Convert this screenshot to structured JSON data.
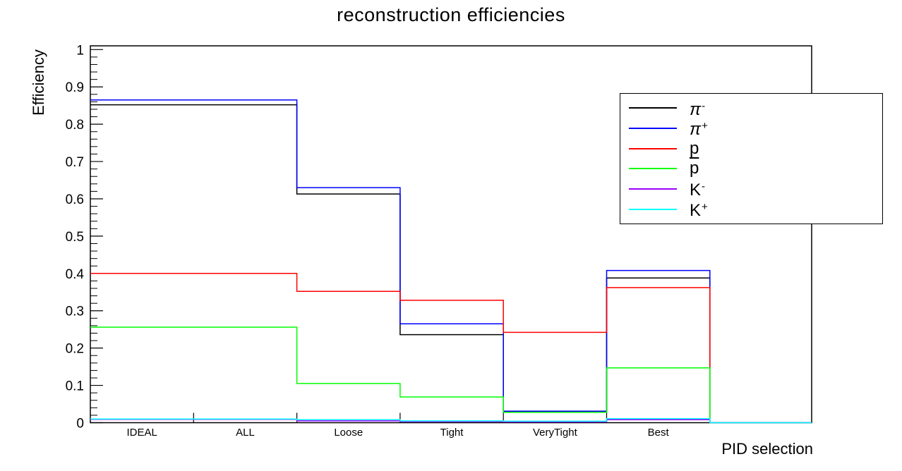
{
  "title": "reconstruction efficiencies",
  "chart_data": {
    "type": "line",
    "style": "step-histogram",
    "title": "reconstruction efficiencies",
    "xlabel": "PID selection",
    "ylabel": "Efficiency",
    "categories": [
      "IDEAL",
      "ALL",
      "Loose",
      "Tight",
      "VeryTight",
      "Best"
    ],
    "ylim": [
      0,
      1.01
    ],
    "y_major_tick_step": 0.1,
    "y_minor_tick_step": 0.02,
    "y_tick_labels": [
      "0",
      "0.1",
      "0.2",
      "0.3",
      "0.4",
      "0.5",
      "0.6",
      "0.7",
      "0.8",
      "0.9",
      "1"
    ],
    "grid": false,
    "legend_position": "top-right",
    "series": [
      {
        "name": "pi-minus",
        "label_base": "π",
        "label_sup": "-",
        "overline": false,
        "color": "#000000",
        "values": [
          0.852,
          0.852,
          0.613,
          0.236,
          0.03,
          0.388
        ]
      },
      {
        "name": "pi-plus",
        "label_base": "π",
        "label_sup": "+",
        "overline": false,
        "color": "#0000ff",
        "values": [
          0.865,
          0.865,
          0.63,
          0.265,
          0.031,
          0.408
        ]
      },
      {
        "name": "p",
        "label_base": "p",
        "label_sup": "",
        "overline": false,
        "color": "#ff0000",
        "values": [
          0.4,
          0.4,
          0.352,
          0.328,
          0.242,
          0.362
        ]
      },
      {
        "name": "p-bar",
        "label_base": "p",
        "label_sup": "",
        "overline": true,
        "color": "#00ff00",
        "values": [
          0.256,
          0.256,
          0.105,
          0.069,
          0.028,
          0.147
        ]
      },
      {
        "name": "K-minus",
        "label_base": "K",
        "label_sup": "-",
        "overline": false,
        "color": "#9900ff",
        "values": [
          0.009,
          0.009,
          0.005,
          0.003,
          0.002,
          0.008
        ]
      },
      {
        "name": "K-plus",
        "label_base": "K",
        "label_sup": "+",
        "overline": false,
        "color": "#00ffff",
        "values": [
          0.01,
          0.01,
          0.008,
          0.005,
          0.004,
          0.011
        ]
      }
    ]
  }
}
